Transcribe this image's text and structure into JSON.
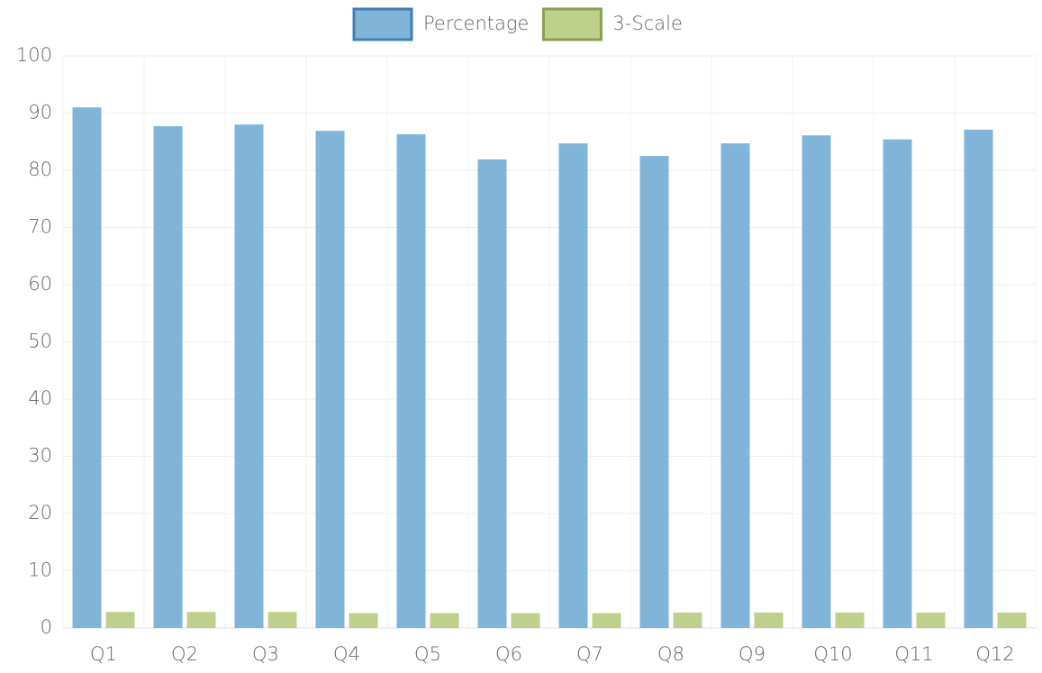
{
  "chart_data": {
    "type": "bar",
    "categories": [
      "Q1",
      "Q2",
      "Q3",
      "Q4",
      "Q5",
      "Q6",
      "Q7",
      "Q8",
      "Q9",
      "Q10",
      "Q11",
      "Q12"
    ],
    "series": [
      {
        "name": "Percentage",
        "color": "#80b4d9",
        "border": "#3f7fb5",
        "values": [
          91.0,
          87.7,
          88.0,
          86.9,
          86.3,
          81.9,
          84.7,
          82.5,
          84.7,
          86.1,
          85.4,
          87.1
        ]
      },
      {
        "name": "3-Scale",
        "color": "#bfd08c",
        "border": "#8aa04f",
        "values": [
          2.8,
          2.8,
          2.8,
          2.6,
          2.6,
          2.6,
          2.6,
          2.7,
          2.7,
          2.7,
          2.7,
          2.7
        ]
      }
    ],
    "ylim": [
      0,
      100
    ],
    "yticks": [
      0,
      10,
      20,
      30,
      40,
      50,
      60,
      70,
      80,
      90,
      100
    ],
    "grid": true,
    "legend": "top"
  }
}
